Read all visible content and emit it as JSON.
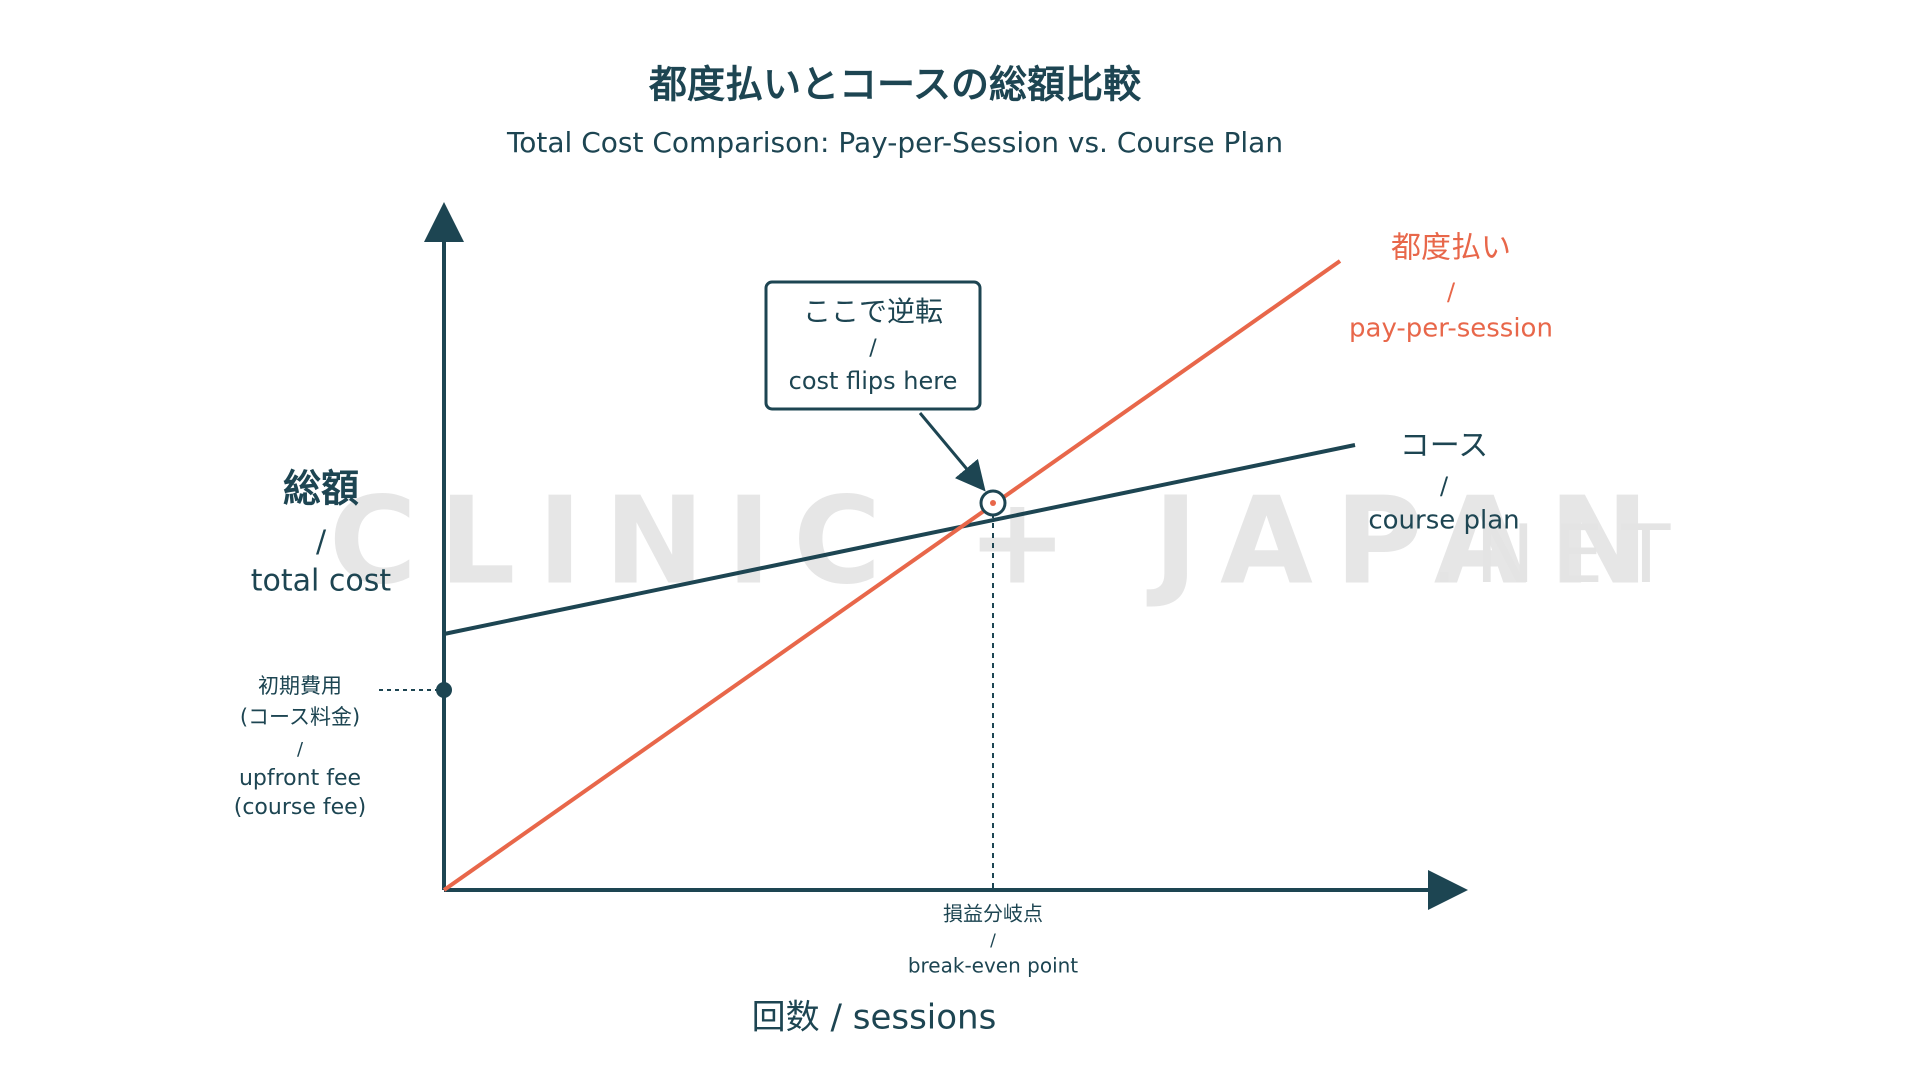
{
  "header": {
    "title": "都度払いとコースの総額比較",
    "subtitle": "Total Cost Comparison: Pay-per-Session vs. Course Plan"
  },
  "axes": {
    "y_label": {
      "ja": "総額",
      "sep": "/",
      "en": "total cost"
    },
    "x_label": "回数 / sessions"
  },
  "lines": [
    {
      "ja": "都度払い",
      "sep": "/",
      "en": "pay-per-session"
    },
    {
      "ja": "コース",
      "sep": "/",
      "en": "course plan"
    }
  ],
  "callout": {
    "ja": "ここで逆転",
    "sep": "/",
    "en": "cost flips here"
  },
  "upfront": {
    "ja1": "初期費用",
    "ja2": "(コース料金)",
    "sep": "/",
    "en1": "upfront fee",
    "en2": "(course fee)"
  },
  "break_even": {
    "ja": "損益分岐点",
    "sep": "/",
    "en": "break-even point"
  },
  "watermark": {
    "main": "CLINIC + JAPAN",
    "suffix": ".NET"
  }
}
